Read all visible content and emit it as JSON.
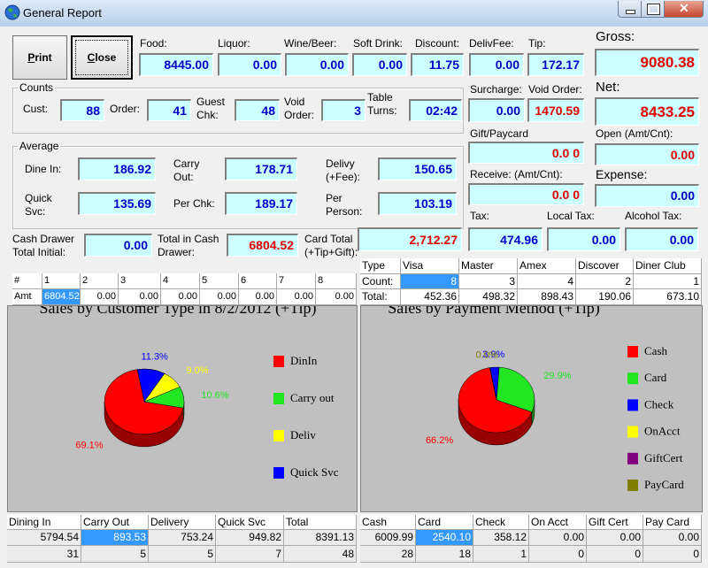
{
  "window": {
    "title": "General Report"
  },
  "buttons": [
    "Print",
    "Close"
  ],
  "groups": [
    "Counts",
    "Average"
  ],
  "fields": [
    {
      "label": "Food:",
      "value": "8445.00"
    },
    {
      "label": "Liquor:",
      "value": "0.00"
    },
    {
      "label": "Wine/Beer:",
      "value": "0.00"
    },
    {
      "label": "Soft Drink:",
      "value": "0.00"
    },
    {
      "label": "Discount:",
      "value": "11.75"
    },
    {
      "label": "DelivFee:",
      "value": "0.00"
    },
    {
      "label": "Tip:",
      "value": "172.17"
    },
    {
      "label": "Gross:",
      "value": "9080.38",
      "color": "#e00000"
    },
    {
      "label": "Net:",
      "value": "8433.25",
      "color": "#e00000"
    },
    {
      "label": "Cust:",
      "value": "88"
    },
    {
      "label": "Order:",
      "value": "41"
    },
    {
      "label": "Guest\nChk:",
      "value": "48"
    },
    {
      "label": "Void\nOrder:",
      "value": "3"
    },
    {
      "label": "Table\nTurns:",
      "value": "02:42"
    },
    {
      "label": "Surcharge:",
      "value": "0.00"
    },
    {
      "label": "Void Order:",
      "value": "1470.59",
      "color": "#e00000"
    },
    {
      "label": "Gift/Paycard",
      "value": "0.0 0",
      "color": "#e00000"
    },
    {
      "label": "Open (Amt/Cnt):",
      "value": "0.00",
      "color": "#e00000"
    },
    {
      "label": "Receive: (Amt/Cnt):",
      "value": "0.0 0",
      "color": "#e00000"
    },
    {
      "label": "Expense:",
      "value": "0.00"
    },
    {
      "label": "Dine In:",
      "value": "186.92"
    },
    {
      "label": "Carry\nOut:",
      "value": "178.71"
    },
    {
      "label": "Delivy\n(+Fee):",
      "value": "150.65"
    },
    {
      "label": "Quick\nSvc:",
      "value": "135.69"
    },
    {
      "label": "Per Chk:",
      "value": "189.17"
    },
    {
      "label": "Per\nPerson:",
      "value": "103.19"
    },
    {
      "label": "Tax:",
      "value": "474.96"
    },
    {
      "label": "Local Tax:",
      "value": "0.00"
    },
    {
      "label": "Alcohol Tax:",
      "value": "0.00"
    },
    {
      "label": "Cash Drawer\nTotal Initial:",
      "value": "0.00"
    },
    {
      "label": "Total in Cash\nDrawer:",
      "value": "6804.52",
      "color": "#e00000"
    },
    {
      "label": "Card Total\n(+Tip+Gift):",
      "value": "2,712.27",
      "color": "#e00000"
    }
  ],
  "drawer_table": {
    "rows": [
      [
        "#",
        "1",
        "2",
        "3",
        "4",
        "5",
        "6",
        "7",
        "8"
      ],
      [
        "Amt",
        "6804.52",
        "0.00",
        "0.00",
        "0.00",
        "0.00",
        "0.00",
        "0.00",
        "0.00"
      ]
    ]
  },
  "card_table": {
    "rows": [
      [
        "Type",
        "Visa",
        "Master",
        "Amex",
        "Discover",
        "Diner Club"
      ],
      [
        "Count:",
        "8",
        "3",
        "4",
        "2",
        "1"
      ],
      [
        "Total:",
        "452.36",
        "498.32",
        "898.43",
        "190.06",
        "673.10"
      ]
    ]
  },
  "customer_table": {
    "rows": [
      [
        "Dining In",
        "Carry Out",
        "Delivery",
        "Quick Svc",
        "Total"
      ],
      [
        "5794.54",
        "893.53",
        "753.24",
        "949.82",
        "8391.13"
      ],
      [
        "31",
        "5",
        "5",
        "7",
        "48"
      ]
    ]
  },
  "payment_table": {
    "rows": [
      [
        "Cash",
        "Card",
        "Check",
        "On Acct",
        "Gift Cert",
        "Pay Card"
      ],
      [
        "6009.99",
        "2540.10",
        "358.12",
        "0.00",
        "0.00",
        "0.00"
      ],
      [
        "28",
        "18",
        "1",
        "0",
        "0",
        "0"
      ]
    ]
  },
  "chart_data": [
    {
      "type": "pie",
      "title": "Sales by Customer Type in 8/2/2012 (+Tip)",
      "categories": [
        "DinIn",
        "Carry out",
        "Deliv",
        "Quick Svc"
      ],
      "values": [
        69.1,
        10.6,
        9.0,
        11.3
      ],
      "value_labels": [
        "69.1%",
        "10.6%",
        "9.0%",
        "11.3%"
      ],
      "colors": [
        "#ff0000",
        "#22e622",
        "#ffff00",
        "#0000ff"
      ]
    },
    {
      "type": "pie",
      "title": "Sales by Payment Method (+Tip)",
      "categories": [
        "Cash",
        "Card",
        "Check",
        "OnAcct",
        "GiftCert",
        "PayCard"
      ],
      "values": [
        66.2,
        29.9,
        3.9,
        0,
        0,
        0
      ],
      "value_labels": [
        "66.2%",
        "29.9%",
        "3.9%",
        null,
        null,
        "0.0%"
      ],
      "colors": [
        "#ff0000",
        "#22e622",
        "#0000ff",
        "#ffff00",
        "#800080",
        "#808000"
      ]
    }
  ]
}
